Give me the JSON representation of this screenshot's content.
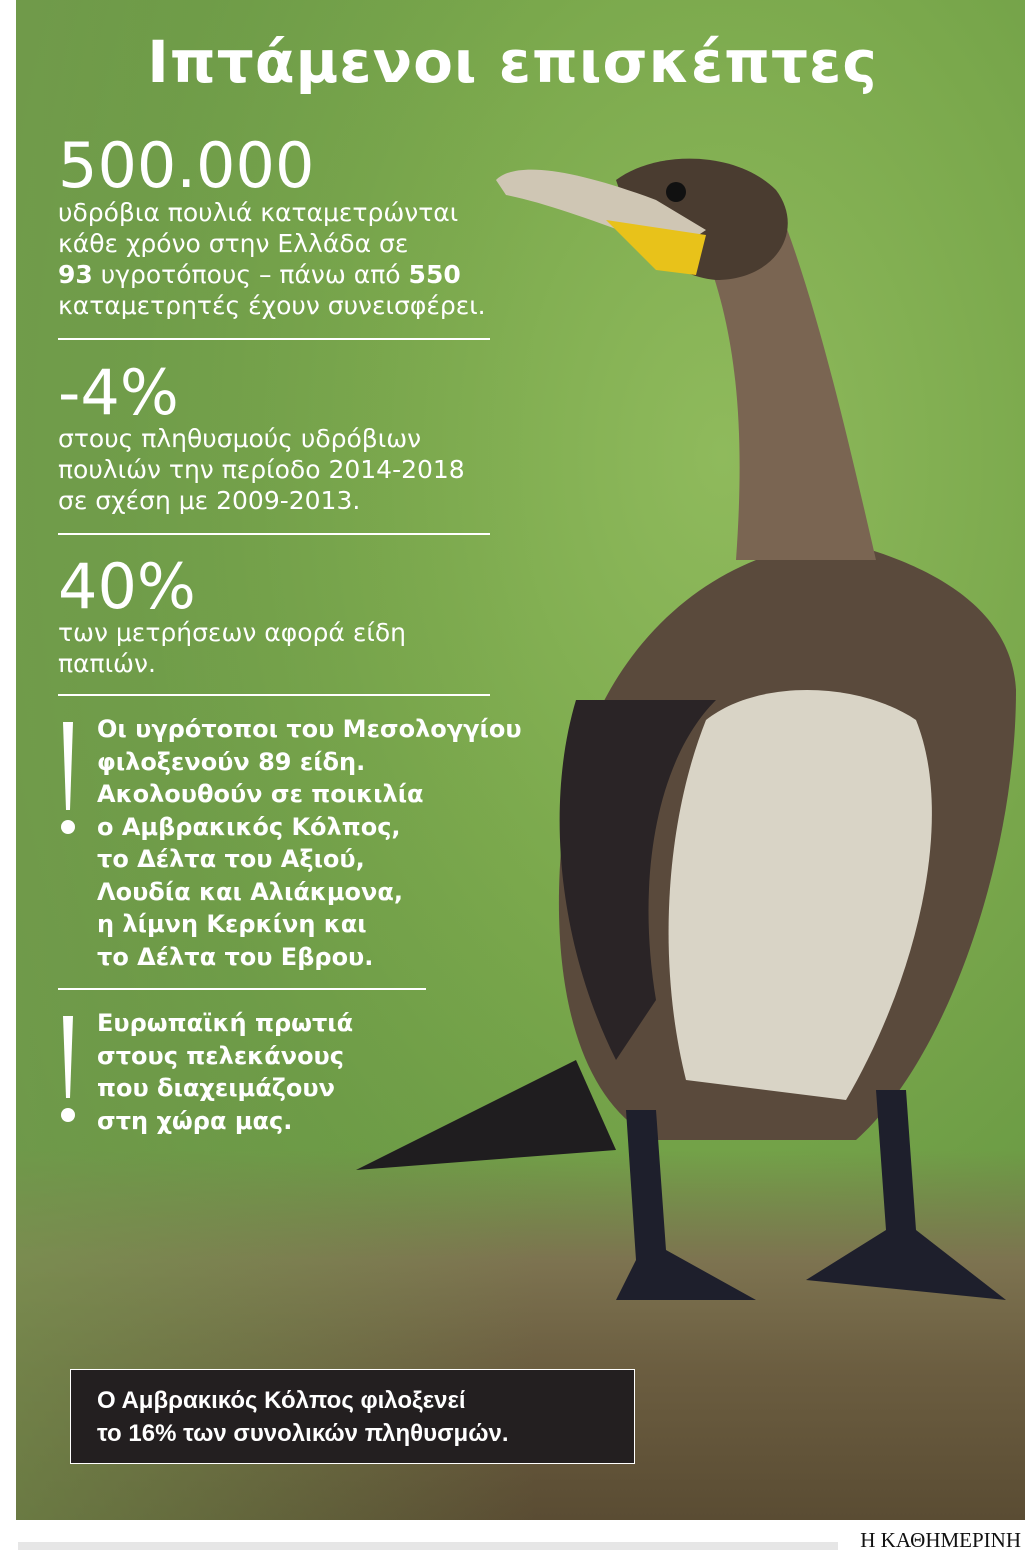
{
  "title": "Ιπτάμενοι επισκέπτες",
  "stats": [
    {
      "value": "500.000",
      "lines": [
        "υδρόβια πουλιά καταμετρώνται",
        "κάθε χρόνο στην Ελλάδα σε"
      ],
      "line3_bold1": "93",
      "line3_mid": " υγροτόπους – πάνω από ",
      "line3_bold2": "550",
      "line4": "καταμετρητές έχουν συνεισφέρει."
    },
    {
      "value": "-4%",
      "lines": [
        "στους πληθυσμούς υδρόβιων",
        "πουλιών την περίοδο 2014-2018",
        "σε σχέση με 2009-2013."
      ]
    },
    {
      "value": "40%",
      "lines": [
        "των μετρήσεων αφορά είδη",
        "παπιών."
      ]
    }
  ],
  "notes": [
    {
      "lines": [
        "Οι υγρότοποι του Μεσολογγίου",
        "φιλοξενούν 89 είδη.",
        "Ακολουθούν σε ποικιλία",
        "ο Αμβρακικός Κόλπος,",
        "το Δέλτα του Αξιού,",
        "Λουδία και Αλιάκμονα,",
        "η λίμνη Κερκίνη και",
        "το Δέλτα του Εβρου."
      ]
    },
    {
      "lines": [
        "Ευρωπαϊκή πρωτιά",
        "στους πελεκάνους",
        "που διαχειμάζουν",
        "στη χώρα μας."
      ]
    }
  ],
  "callout": {
    "lines": [
      "Ο Αμβρακικός Κόλπος φιλοξενεί",
      "το 16% των συνολικών πληθυσμών."
    ]
  },
  "brand": "Η ΚΑΘΗΜΕΡΙΝΗ",
  "colors": {
    "background": "#7aa84c",
    "callout": "#231f20",
    "text": "#ffffff",
    "beak_patch": "#e8c21a"
  }
}
